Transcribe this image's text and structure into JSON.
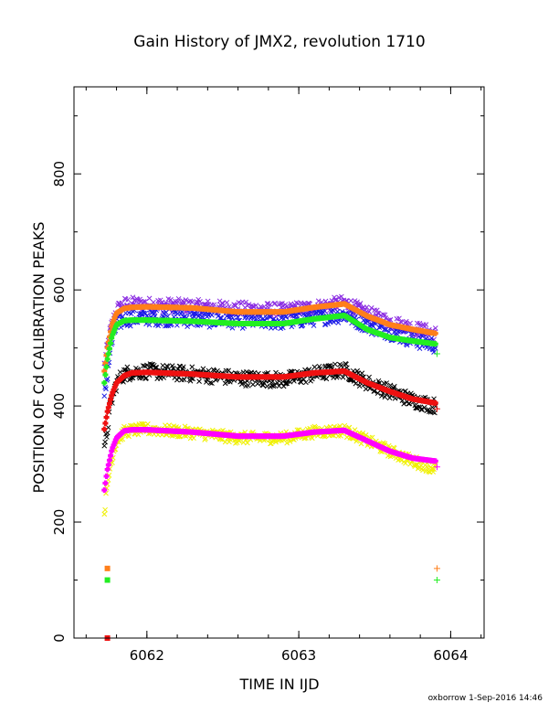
{
  "page": {
    "footer": "oxborrow  1-Sep-2016 14:46"
  },
  "chart_data": {
    "type": "scatter",
    "title": "Gain History of JMX2, revolution 1710",
    "xlabel": "TIME IN IJD",
    "ylabel": "POSITION OF Cd CALIBRATION PEAKS",
    "xlim": [
      6061.52,
      6064.22
    ],
    "ylim": [
      0,
      950
    ],
    "xticks": [
      6062,
      6063,
      6064
    ],
    "xtick_labels": [
      "6062",
      "6063",
      "6064"
    ],
    "yticks": [
      0,
      200,
      400,
      600,
      800
    ],
    "ytick_labels": [
      "0",
      "200",
      "400",
      "600",
      "800"
    ],
    "grid": false,
    "legend": "none",
    "colors": {
      "purple": "#8a2be2",
      "blue": "#1a1ae6",
      "orange": "#ff7f1a",
      "green": "#22ee22",
      "black": "#000000",
      "red": "#ee1111",
      "yellow": "#f0f000",
      "magenta": "#ff00ff"
    },
    "series": [
      {
        "color": "#8a2be2",
        "marker": "x",
        "scatter": 12,
        "x": [
          6061.72,
          6061.76,
          6061.8,
          6061.85,
          6061.9,
          6062.0,
          6062.3,
          6062.6,
          6062.9,
          6063.1,
          6063.3,
          6063.45,
          6063.6,
          6063.75,
          6063.9
        ],
        "y": [
          470,
          530,
          565,
          575,
          576,
          575,
          572,
          568,
          565,
          570,
          578,
          560,
          545,
          535,
          525
        ]
      },
      {
        "color": "#1a1ae6",
        "marker": "x",
        "scatter": 14,
        "x": [
          6061.72,
          6061.76,
          6061.8,
          6061.85,
          6061.9,
          6062.0,
          6062.3,
          6062.6,
          6062.9,
          6063.1,
          6063.3,
          6063.45,
          6063.6,
          6063.75,
          6063.9
        ],
        "y": [
          410,
          500,
          540,
          550,
          552,
          553,
          550,
          548,
          546,
          552,
          558,
          540,
          528,
          515,
          505
        ]
      },
      {
        "color": "#ff7f1a",
        "marker": "+",
        "scatter": 0,
        "x": [
          6061.72,
          6061.74,
          6061.77,
          6061.8,
          6061.85,
          6061.9,
          6062.0,
          6062.3,
          6062.6,
          6062.9,
          6063.1,
          6063.3,
          6063.45,
          6063.6,
          6063.75,
          6063.9
        ],
        "y": [
          460,
          500,
          540,
          560,
          568,
          570,
          571,
          569,
          562,
          562,
          570,
          576,
          555,
          540,
          532,
          525
        ]
      },
      {
        "color": "#22ee22",
        "marker": "+",
        "scatter": 0,
        "x": [
          6061.72,
          6061.74,
          6061.77,
          6061.8,
          6061.85,
          6061.9,
          6062.0,
          6062.3,
          6062.6,
          6062.9,
          6063.1,
          6063.3,
          6063.45,
          6063.6,
          6063.75,
          6063.9
        ],
        "y": [
          440,
          480,
          520,
          540,
          547,
          548,
          548,
          546,
          542,
          542,
          550,
          556,
          532,
          518,
          512,
          507
        ]
      },
      {
        "color": "#000000",
        "marker": "x",
        "scatter": 13,
        "x": [
          6061.72,
          6061.76,
          6061.8,
          6061.85,
          6061.9,
          6062.0,
          6062.3,
          6062.6,
          6062.9,
          6063.1,
          6063.3,
          6063.45,
          6063.6,
          6063.75,
          6063.9
        ],
        "y": [
          320,
          400,
          440,
          455,
          458,
          460,
          455,
          448,
          445,
          455,
          462,
          440,
          425,
          410,
          400
        ]
      },
      {
        "color": "#ee1111",
        "marker": "+",
        "scatter": 0,
        "x": [
          6061.72,
          6061.74,
          6061.77,
          6061.8,
          6061.85,
          6061.9,
          6062.0,
          6062.3,
          6062.6,
          6062.9,
          6063.1,
          6063.3,
          6063.45,
          6063.6,
          6063.75,
          6063.9
        ],
        "y": [
          360,
          390,
          420,
          440,
          452,
          457,
          458,
          455,
          450,
          450,
          457,
          460,
          440,
          425,
          412,
          405
        ]
      },
      {
        "color": "#f0f000",
        "marker": "x",
        "scatter": 10,
        "x": [
          6061.72,
          6061.76,
          6061.8,
          6061.85,
          6061.9,
          6062.0,
          6062.3,
          6062.6,
          6062.9,
          6063.1,
          6063.3,
          6063.45,
          6063.6,
          6063.75,
          6063.9
        ],
        "y": [
          220,
          300,
          340,
          355,
          358,
          360,
          354,
          345,
          345,
          355,
          358,
          340,
          322,
          305,
          292
        ]
      },
      {
        "color": "#ff00ff",
        "marker": "+",
        "scatter": 0,
        "x": [
          6061.72,
          6061.74,
          6061.77,
          6061.8,
          6061.85,
          6061.9,
          6062.0,
          6062.3,
          6062.6,
          6062.9,
          6063.1,
          6063.3,
          6063.45,
          6063.6,
          6063.75,
          6063.9
        ],
        "y": [
          255,
          290,
          325,
          345,
          357,
          359,
          359,
          355,
          348,
          348,
          355,
          358,
          340,
          322,
          310,
          305
        ]
      }
    ],
    "end_markers": [
      {
        "color": "#ff7f1a",
        "marker": "square",
        "x": 6061.74,
        "y": 120
      },
      {
        "color": "#22ee22",
        "marker": "square",
        "x": 6061.74,
        "y": 100
      },
      {
        "color": "#ff7f1a",
        "marker": "+",
        "x": 6063.91,
        "y": 120
      },
      {
        "color": "#22ee22",
        "marker": "+",
        "x": 6063.91,
        "y": 100
      },
      {
        "color": "#ee1111",
        "marker": "square",
        "x": 6061.74,
        "y": 0
      },
      {
        "color": "#ff00ff",
        "marker": "+",
        "x": 6063.91,
        "y": 295
      },
      {
        "color": "#22ee22",
        "marker": "+",
        "x": 6063.91,
        "y": 490
      },
      {
        "color": "#ee1111",
        "marker": "+",
        "x": 6063.91,
        "y": 395
      }
    ]
  }
}
